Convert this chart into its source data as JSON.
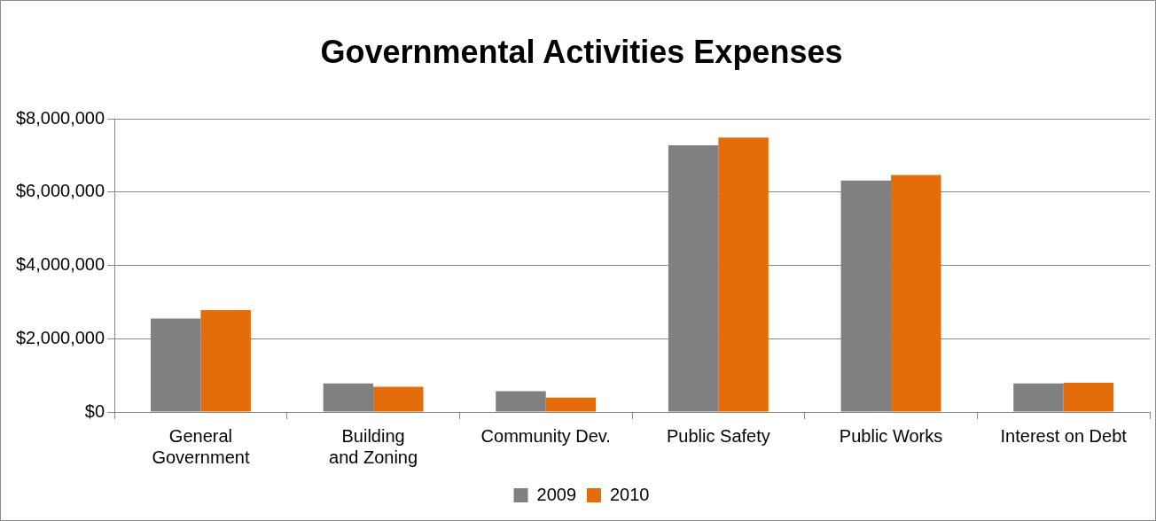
{
  "chart_data": {
    "type": "bar",
    "title": "Governmental Activities Expenses",
    "categories": [
      "General Government",
      "Building and Zoning",
      "Community Dev.",
      "Public Safety",
      "Public Works",
      "Interest on Debt"
    ],
    "series": [
      {
        "name": "2009",
        "color": "#808080",
        "values": [
          2550000,
          780000,
          570000,
          7280000,
          6320000,
          780000
        ]
      },
      {
        "name": "2010",
        "color": "#e46c0a",
        "values": [
          2780000,
          690000,
          390000,
          7490000,
          6470000,
          800000
        ]
      }
    ],
    "ylim": [
      0,
      8000000
    ],
    "yticks": [
      {
        "value": 0,
        "label": "$0"
      },
      {
        "value": 2000000,
        "label": "$2,000,000"
      },
      {
        "value": 4000000,
        "label": "$4,000,000"
      },
      {
        "value": 6000000,
        "label": "$6,000,000"
      },
      {
        "value": 8000000,
        "label": "$8,000,000"
      }
    ],
    "grid": "y",
    "legend": "bottom"
  }
}
